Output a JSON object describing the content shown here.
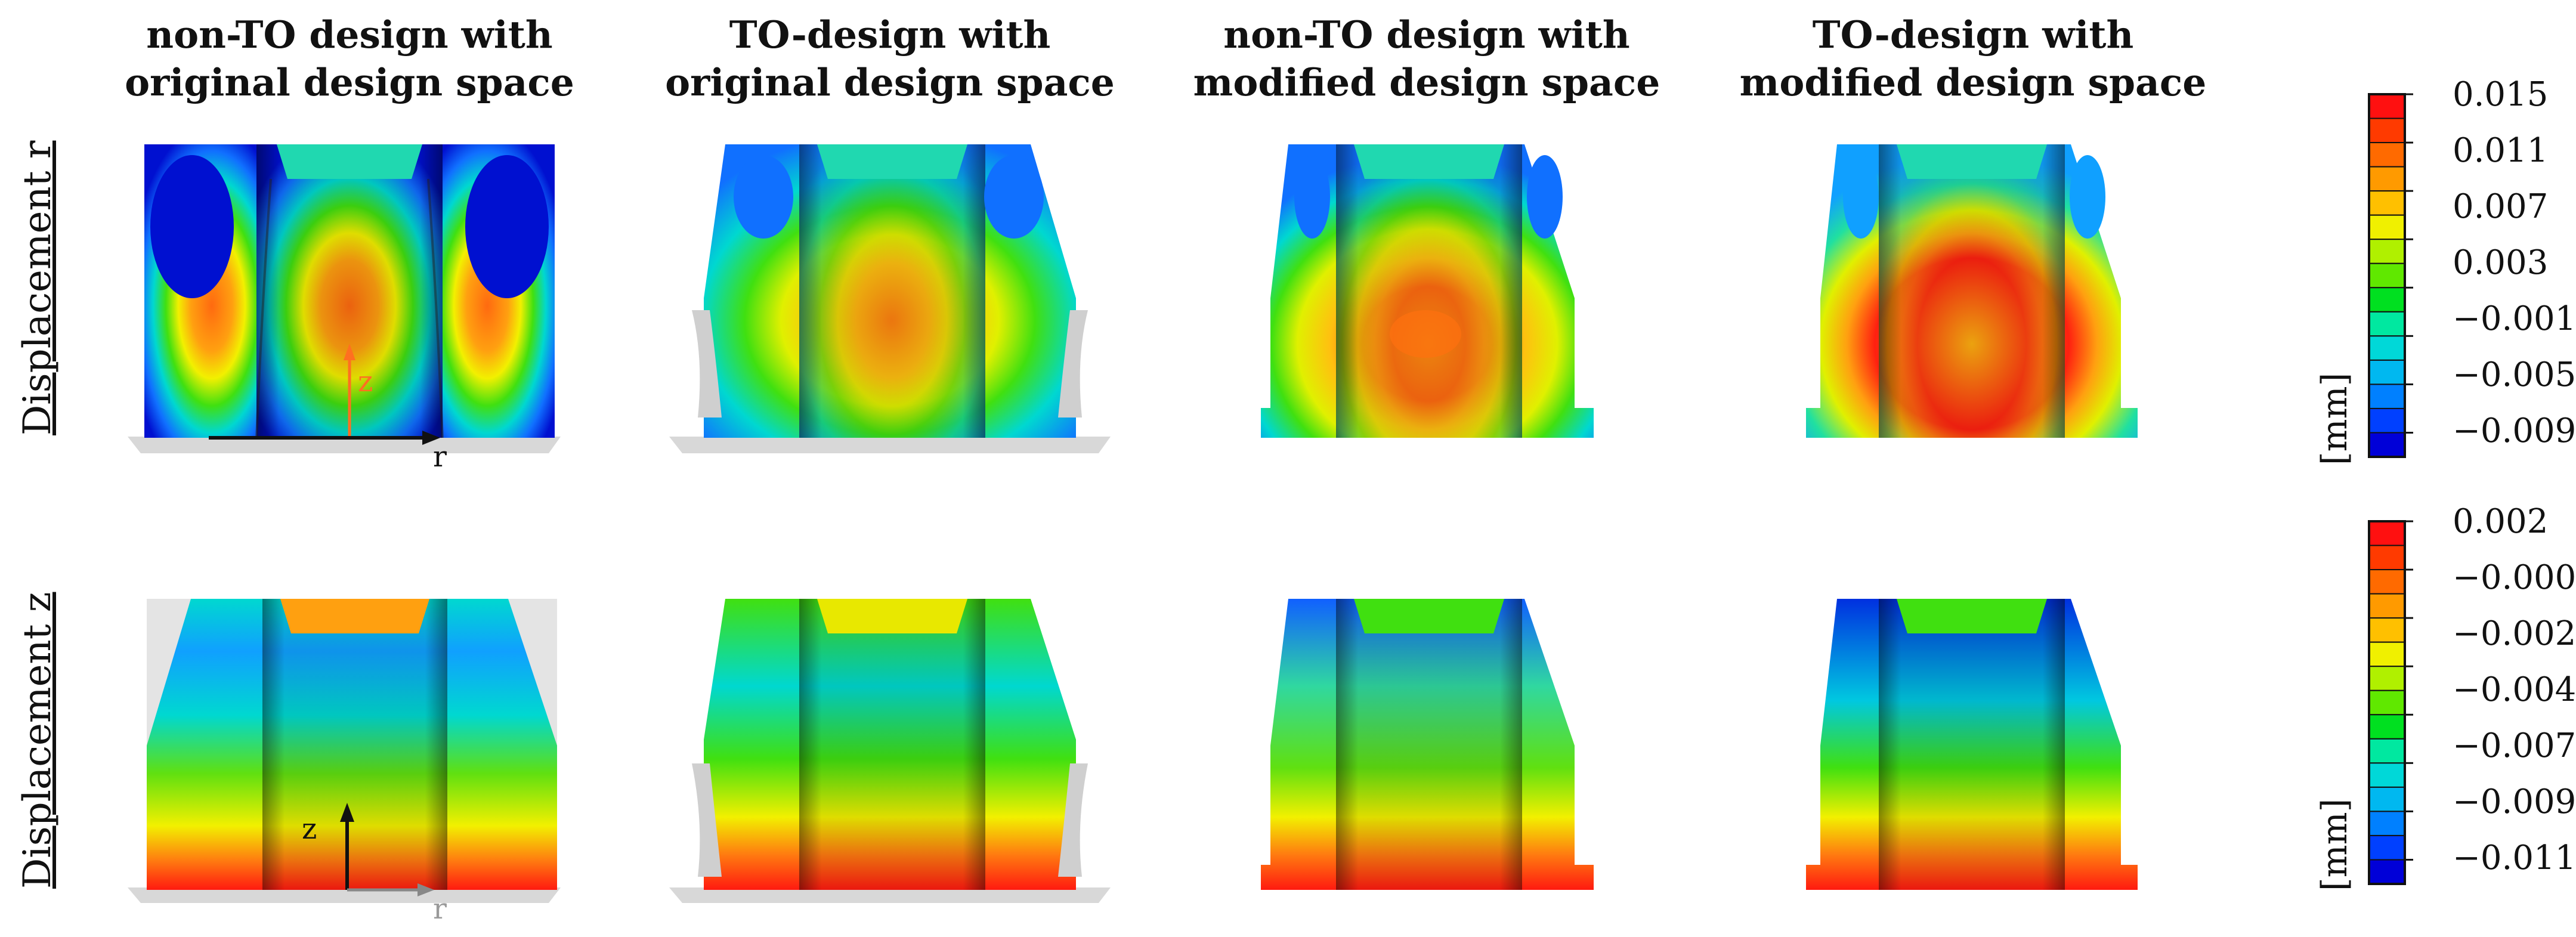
{
  "column_titles": [
    {
      "line1": "non-TO design with",
      "line2": "original design space"
    },
    {
      "line1": "TO-design with",
      "line2": "original design space"
    },
    {
      "line1": "non-TO design with",
      "line2": "modified design space"
    },
    {
      "line1": "TO-design with",
      "line2": "modified design space"
    }
  ],
  "row_labels": {
    "r": "Displacement r",
    "z": "Displacement z"
  },
  "colorbars": [
    {
      "unit": "[mm]",
      "ticks": [
        "0.015",
        "0.011",
        "0.007",
        "0.003",
        "−0.001",
        "−0.005",
        "−0.009"
      ],
      "colors": [
        "#ff1010",
        "#ff3a00",
        "#ff6a00",
        "#ff9a00",
        "#ffc000",
        "#f0f000",
        "#b0f000",
        "#60e800",
        "#00e020",
        "#00e8a0",
        "#00d8d8",
        "#00b8f0",
        "#0080ff",
        "#0040ff",
        "#0000d8"
      ]
    },
    {
      "unit": "[mm]",
      "ticks": [
        "0.002",
        "−0.000",
        "−0.002",
        "−0.004",
        "−0.007",
        "−0.009",
        "−0.011"
      ],
      "colors": [
        "#ff1010",
        "#ff3a00",
        "#ff6a00",
        "#ff9a00",
        "#ffc000",
        "#f0f000",
        "#b0f000",
        "#60e800",
        "#00e020",
        "#00e8a0",
        "#00d8d8",
        "#00b8f0",
        "#0080ff",
        "#0040ff",
        "#0000d8"
      ]
    }
  ],
  "axis_letters": {
    "z": "z",
    "r": "r"
  },
  "palette": {
    "red": "#ff1a10",
    "orange": "#ff7a10",
    "yellow": "#f2f000",
    "green": "#38e010",
    "cyan": "#00d8d0",
    "blue": "#1060ff",
    "dark_blue": "#0010d0",
    "gray": "#d8d8d8"
  }
}
